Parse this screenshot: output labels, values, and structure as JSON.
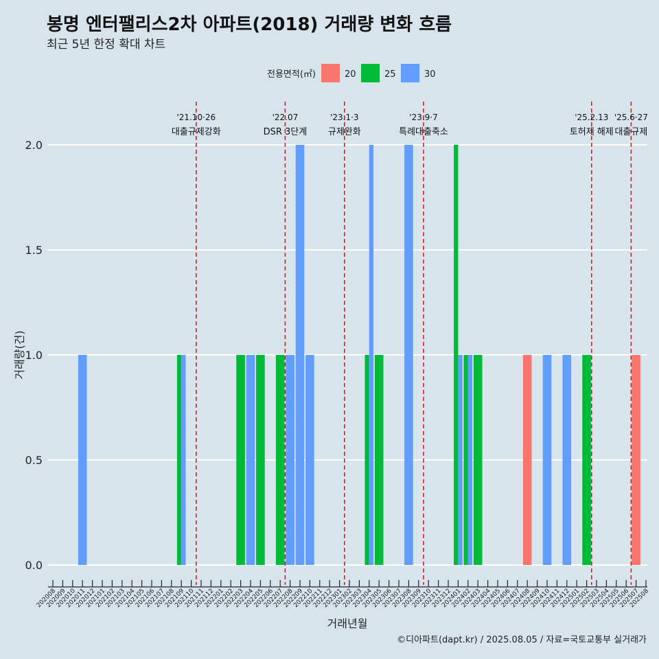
{
  "chart_data": {
    "type": "bar",
    "title": "봉명 엔터팰리스2차 아파트(2018) 거래량 변화 흐름",
    "subtitle": "최근 5년 한정 확대 차트",
    "xlabel": "거래년월",
    "ylabel": "거래량(건)",
    "caption": "©디아파트(dapt.kr) / 2025.08.05 / 자료=국토교통부 실거래가",
    "ylim": [
      -0.08,
      2.2
    ],
    "yticks": [
      "0.0",
      "0.5",
      "1.0",
      "1.5",
      "2.0"
    ],
    "ytick_values": [
      0,
      0.5,
      1,
      1.5,
      2
    ],
    "legend": {
      "title": "전용면적(㎡)",
      "position": "top",
      "entries": [
        {
          "name": "20",
          "color": "#f8766d"
        },
        {
          "name": "25",
          "color": "#00ba38"
        },
        {
          "name": "30",
          "color": "#619cff"
        }
      ]
    },
    "categories": [
      "202008",
      "202009",
      "202010",
      "202011",
      "202012",
      "202101",
      "202102",
      "202103",
      "202104",
      "202105",
      "202106",
      "202107",
      "202108",
      "202109",
      "202110",
      "202111",
      "202112",
      "202201",
      "202202",
      "202203",
      "202204",
      "202205",
      "202206",
      "202207",
      "202208",
      "202209",
      "202210",
      "202211",
      "202212",
      "202301",
      "202302",
      "202303",
      "202304",
      "202305",
      "202306",
      "202307",
      "202308",
      "202309",
      "202310",
      "202311",
      "202312",
      "202401",
      "202402",
      "202403",
      "202404",
      "202405",
      "202406",
      "202407",
      "202408",
      "202409",
      "202410",
      "202411",
      "202412",
      "202501",
      "202502",
      "202503",
      "202504",
      "202505",
      "202506",
      "202507",
      "202508"
    ],
    "bars": [
      {
        "month": "202011",
        "size": "30",
        "count": 1
      },
      {
        "month": "202109",
        "size": "25",
        "count": 1
      },
      {
        "month": "202109",
        "size": "30",
        "count": 1
      },
      {
        "month": "202203",
        "size": "25",
        "count": 1
      },
      {
        "month": "202204",
        "size": "30",
        "count": 1
      },
      {
        "month": "202205",
        "size": "25",
        "count": 1
      },
      {
        "month": "202207",
        "size": "25",
        "count": 1
      },
      {
        "month": "202208",
        "size": "30",
        "count": 1
      },
      {
        "month": "202209",
        "size": "30",
        "count": 2
      },
      {
        "month": "202210",
        "size": "30",
        "count": 1
      },
      {
        "month": "202304",
        "size": "25",
        "count": 1
      },
      {
        "month": "202304",
        "size": "30",
        "count": 2
      },
      {
        "month": "202305",
        "size": "25",
        "count": 1
      },
      {
        "month": "202308",
        "size": "30",
        "count": 2
      },
      {
        "month": "202401",
        "size": "25",
        "count": 2
      },
      {
        "month": "202401",
        "size": "30",
        "count": 1
      },
      {
        "month": "202402",
        "size": "25",
        "count": 1
      },
      {
        "month": "202402",
        "size": "30",
        "count": 1
      },
      {
        "month": "202403",
        "size": "25",
        "count": 1
      },
      {
        "month": "202408",
        "size": "20",
        "count": 1
      },
      {
        "month": "202410",
        "size": "30",
        "count": 1
      },
      {
        "month": "202412",
        "size": "30",
        "count": 1
      },
      {
        "month": "202502",
        "size": "25",
        "count": 1
      },
      {
        "month": "202507",
        "size": "20",
        "count": 1
      }
    ],
    "events": [
      {
        "month": "202110",
        "date": "'21.10·26",
        "label": "대출규제강화"
      },
      {
        "month": "202207",
        "date": "'22.07",
        "label": "DSR 3단계"
      },
      {
        "month": "202301",
        "date": "'23.1·3",
        "label": "규제완화"
      },
      {
        "month": "202309",
        "date": "'23.9·7",
        "label": "특례대출축소"
      },
      {
        "month": "202502",
        "date": "'25.2.13",
        "label": "토허제 해제"
      },
      {
        "month": "202506",
        "date": "'25.6·27",
        "label": "대출규제"
      }
    ]
  }
}
